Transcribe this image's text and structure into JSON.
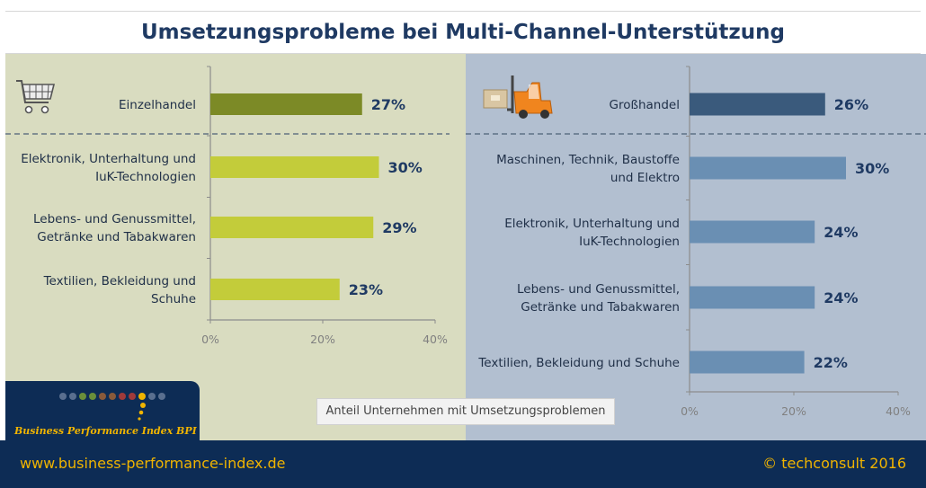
{
  "title": "Umsetzungsprobleme bei Multi-Channel-Unterstützung",
  "footer": {
    "url": "www.business-performance-index.de",
    "copyright": "© techconsult 2016"
  },
  "logo": {
    "text": "Business Performance Index BPI"
  },
  "icons": {
    "left": "shopping-cart-icon",
    "right": "forklift-icon"
  },
  "colors": {
    "left_highlight": "#7c8a26",
    "left_bar": "#c3cc3a",
    "right_highlight": "#3a5a7c",
    "right_bar": "#6a8fb3",
    "footer": "#0d2c55",
    "accent": "#f0b400"
  },
  "chart_data": [
    {
      "type": "bar",
      "orientation": "horizontal",
      "categories": [
        [
          "Einzelhandel"
        ],
        [
          "Elektronik, Unterhaltung und",
          "IuK-Technologien"
        ],
        [
          "Lebens- und Genussmittel,",
          "Getränke und Tabakwaren"
        ],
        [
          "Textilien, Bekleidung und",
          "Schuhe"
        ]
      ],
      "values": [
        27,
        30,
        29,
        23
      ],
      "value_labels": [
        "27%",
        "30%",
        "29%",
        "23%"
      ],
      "highlight_index": 0,
      "xlim": [
        0,
        40
      ],
      "xticks": [
        "0%",
        "20%",
        "40%"
      ],
      "xlabel": "Anteil Unternehmen mit Umsetzungsproblemen"
    },
    {
      "type": "bar",
      "orientation": "horizontal",
      "categories": [
        [
          "Großhandel"
        ],
        [
          "Maschinen, Technik, Baustoffe",
          "und Elektro"
        ],
        [
          "Elektronik, Unterhaltung und",
          "IuK-Technologien"
        ],
        [
          "Lebens- und Genussmittel,",
          "Getränke und Tabakwaren"
        ],
        [
          "Textilien, Bekleidung und Schuhe"
        ]
      ],
      "values": [
        26,
        30,
        24,
        24,
        22
      ],
      "value_labels": [
        "26%",
        "30%",
        "24%",
        "24%",
        "22%"
      ],
      "highlight_index": 0,
      "xlim": [
        0,
        40
      ],
      "xticks": [
        "0%",
        "20%",
        "40%"
      ],
      "xlabel": "Anteil Unternehmen mit Umsetzungsproblemen"
    }
  ]
}
